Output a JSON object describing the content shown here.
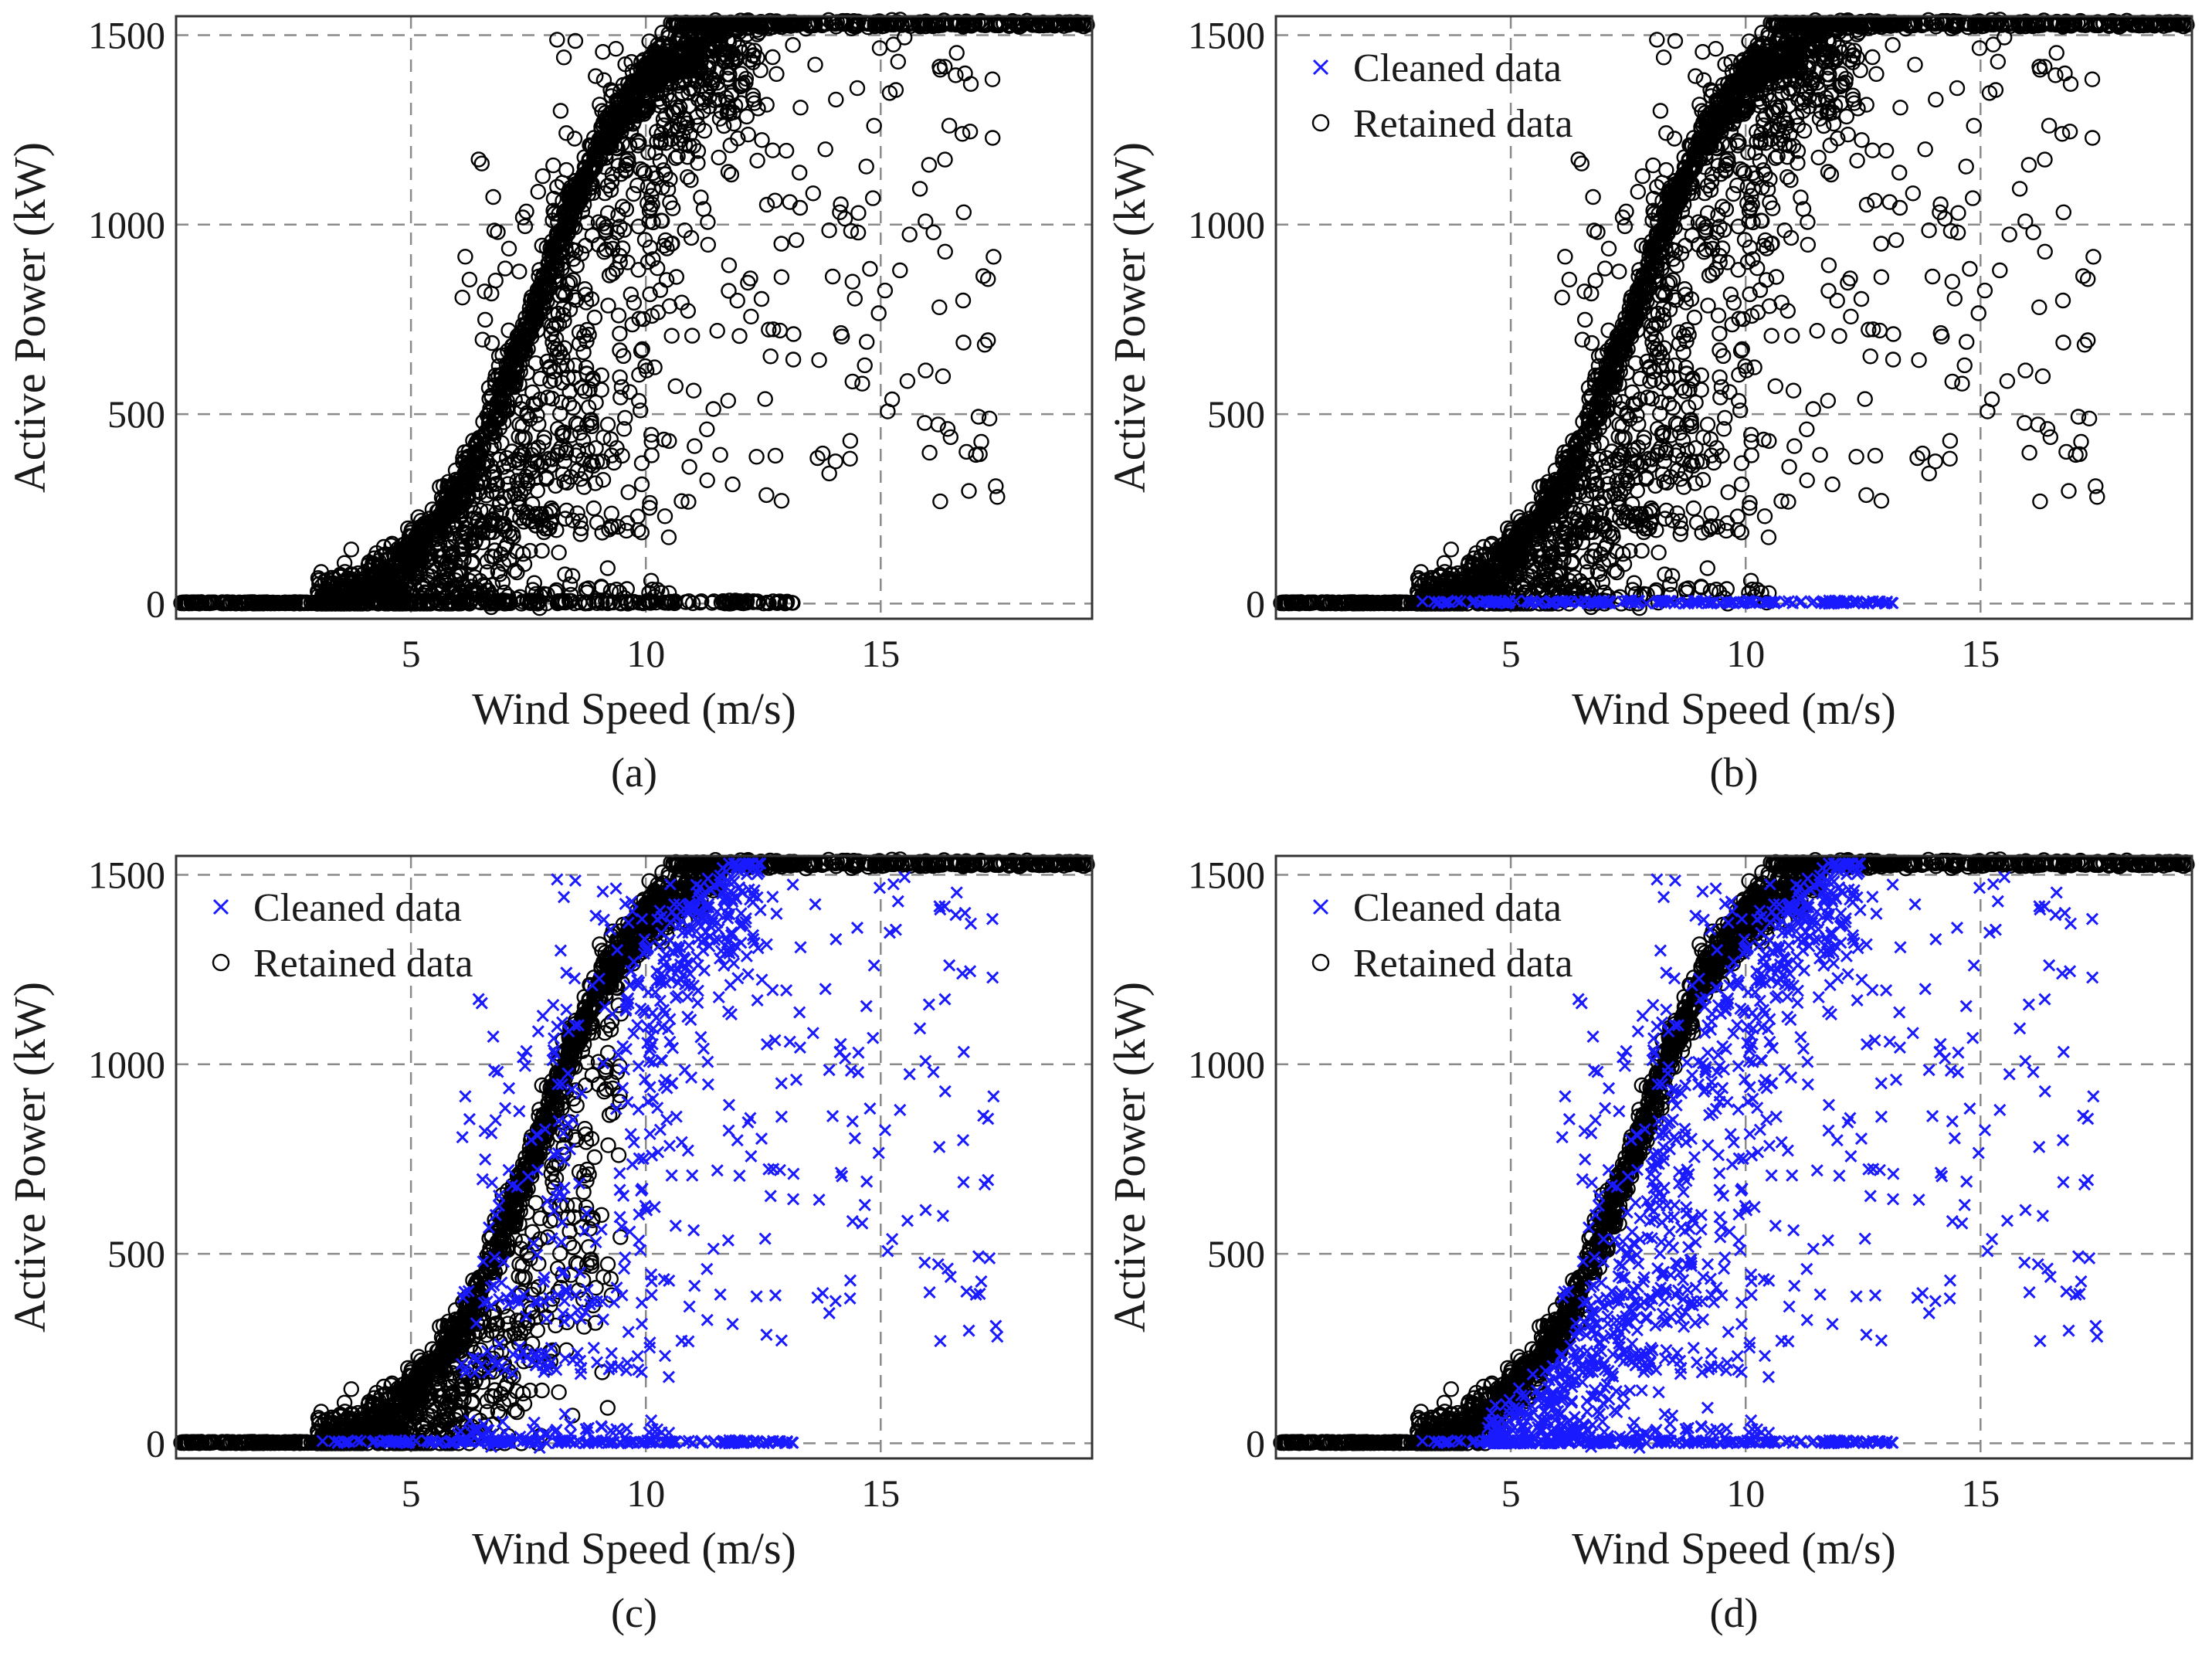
{
  "chart_data": [
    {
      "type": "scatter",
      "panel": "a",
      "caption": "(a)",
      "xlabel": "Wind Speed (m/s)",
      "ylabel": "Active Power (kW)",
      "xlim": [
        0,
        19.5
      ],
      "ylim": [
        -40,
        1550
      ],
      "xticks": [
        "5",
        "10",
        "15"
      ],
      "yticks": [
        "0",
        "500",
        "1000",
        "1500"
      ],
      "grid": true,
      "legend": null,
      "series": [
        {
          "name": "Retained data",
          "marker": "circle",
          "color": "#000000",
          "points": "all turbine SCADA samples (dense power curve, rated 1530 kW, cut-in ~3 m/s)"
        }
      ]
    },
    {
      "type": "scatter",
      "panel": "b",
      "caption": "(b)",
      "xlabel": "Wind Speed (m/s)",
      "ylabel": "Active Power (kW)",
      "xlim": [
        0,
        19.5
      ],
      "ylim": [
        -40,
        1550
      ],
      "xticks": [
        "5",
        "10",
        "15"
      ],
      "yticks": [
        "0",
        "500",
        "1000",
        "1500"
      ],
      "grid": true,
      "legend": {
        "position": "top-left",
        "entries": [
          "Cleaned data",
          "Retained data"
        ]
      },
      "series": [
        {
          "name": "Cleaned data",
          "marker": "x",
          "color": "#1a1aff",
          "points": "zero-power samples for wind speed 3 to 13.2 m/s"
        },
        {
          "name": "Retained data",
          "marker": "circle",
          "color": "#000000",
          "points": "all remaining samples"
        }
      ]
    },
    {
      "type": "scatter",
      "panel": "c",
      "caption": "(c)",
      "xlabel": "Wind Speed (m/s)",
      "ylabel": "Active Power (kW)",
      "xlim": [
        0,
        19.5
      ],
      "ylim": [
        -40,
        1550
      ],
      "xticks": [
        "5",
        "10",
        "15"
      ],
      "yticks": [
        "0",
        "500",
        "1000",
        "1500"
      ],
      "grid": true,
      "legend": {
        "position": "top-left",
        "entries": [
          "Cleaned data",
          "Retained data"
        ]
      },
      "series": [
        {
          "name": "Cleaned data",
          "marker": "x",
          "color": "#1a1aff",
          "points": "zero-power samples plus scattered outliers right of the main curve"
        },
        {
          "name": "Retained data",
          "marker": "circle",
          "color": "#000000",
          "points": "main power curve band and stacked region"
        }
      ]
    },
    {
      "type": "scatter",
      "panel": "d",
      "caption": "(d)",
      "xlabel": "Wind Speed (m/s)",
      "ylabel": "Active Power (kW)",
      "xlim": [
        0,
        19.5
      ],
      "ylim": [
        -40,
        1550
      ],
      "xticks": [
        "5",
        "10",
        "15"
      ],
      "yticks": [
        "0",
        "500",
        "1000",
        "1500"
      ],
      "grid": true,
      "legend": {
        "position": "top-left",
        "entries": [
          "Cleaned data",
          "Retained data"
        ]
      },
      "series": [
        {
          "name": "Cleaned data",
          "marker": "x",
          "color": "#1a1aff",
          "points": "zero-power, stacked and scattered outliers (everything off the narrow main curve)"
        },
        {
          "name": "Retained data",
          "marker": "circle",
          "color": "#000000",
          "points": "narrow main power curve band only"
        }
      ]
    }
  ]
}
